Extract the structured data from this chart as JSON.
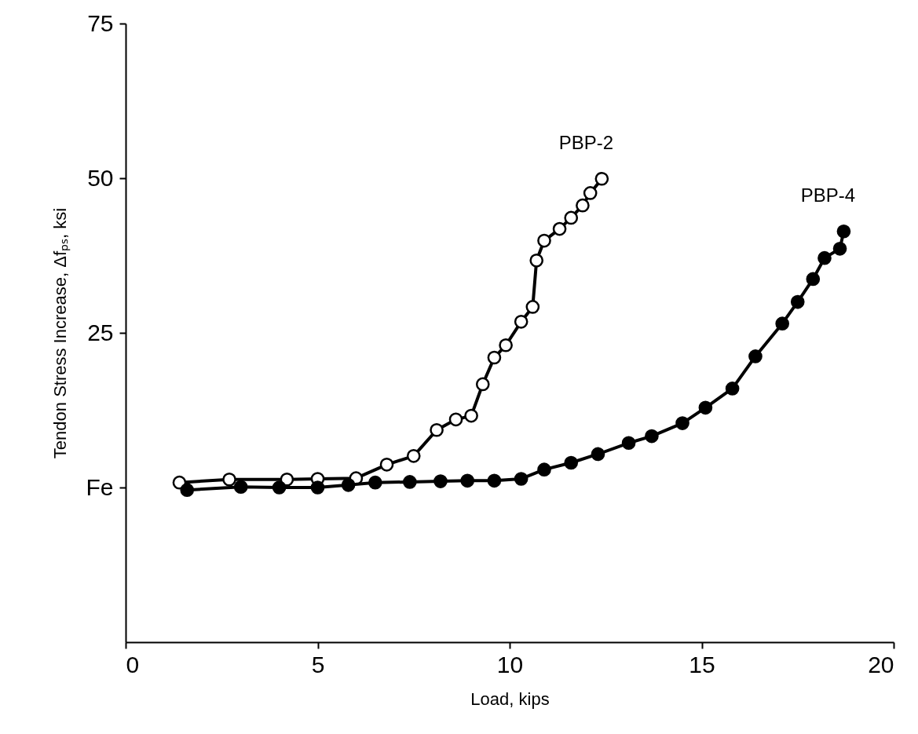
{
  "chart_data": {
    "type": "line",
    "xlabel": "Load, kips",
    "ylabel": "Tendon Stress Increase, Δfₚₛ, ksi",
    "xlim": [
      0,
      20
    ],
    "xticks": [
      0,
      5,
      10,
      15,
      20
    ],
    "ylim": [
      -25,
      75
    ],
    "yticks": [
      {
        "value": 0,
        "label": "Fe"
      },
      25,
      50,
      75
    ],
    "grid": false,
    "marker": "circle",
    "line_style": "solid",
    "series": [
      {
        "name": "PBP-2",
        "color": "#000000",
        "x": [
          1.4,
          2.7,
          4.2,
          5.0,
          6.0,
          6.8,
          7.5,
          8.1,
          8.6,
          9.0,
          9.3,
          9.6,
          9.9,
          10.3,
          10.6,
          10.7,
          10.9,
          11.3,
          11.6,
          11.9,
          12.1,
          12.4
        ],
        "values": [
          0.8,
          1.3,
          1.3,
          1.4,
          1.5,
          3.7,
          5.1,
          9.3,
          11.0,
          11.6,
          16.7,
          21.0,
          23.0,
          26.8,
          29.2,
          36.7,
          39.9,
          41.8,
          43.6,
          45.6,
          47.6,
          49.9
        ]
      },
      {
        "name": "PBP-4",
        "color": "#000000",
        "x": [
          1.6,
          3.0,
          4.0,
          5.0,
          5.8,
          6.5,
          7.4,
          8.2,
          8.9,
          9.6,
          10.3,
          10.9,
          11.6,
          12.3,
          13.1,
          13.7,
          14.5,
          15.1,
          15.8,
          16.4,
          17.1,
          17.5,
          17.9,
          18.2,
          18.6,
          18.7
        ],
        "values": [
          -0.4,
          0.1,
          0.0,
          0.0,
          0.4,
          0.8,
          0.9,
          1.0,
          1.1,
          1.1,
          1.4,
          2.9,
          4.0,
          5.4,
          7.2,
          8.3,
          10.4,
          12.9,
          16.0,
          21.2,
          26.5,
          30.0,
          33.7,
          37.1,
          38.6,
          41.4
        ]
      }
    ]
  }
}
